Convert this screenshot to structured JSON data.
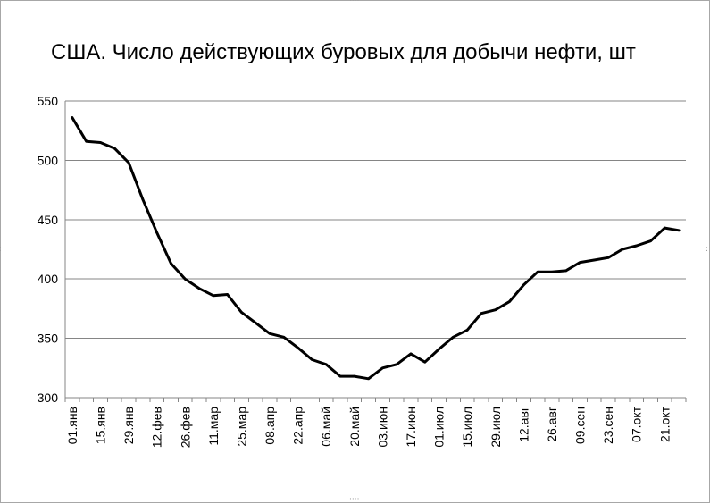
{
  "chart_data": {
    "type": "line",
    "title": "США. Число действующих буровых для добычи нефти, шт",
    "xlabel": "",
    "ylabel": "",
    "ylim": [
      300,
      550
    ],
    "yticks": [
      300,
      350,
      400,
      450,
      500,
      550
    ],
    "grid": "horizontal",
    "legend": "none",
    "line_color": "#000000",
    "x_tick_labels": [
      "01.янв",
      "15.янв",
      "29.янв",
      "12.фев",
      "26.фев",
      "11.мар",
      "25.мар",
      "08.апр",
      "22.апр",
      "06.май",
      "20.май",
      "03.июн",
      "17.июн",
      "01.июл",
      "15.июл",
      "29.июл",
      "12.авг",
      "26.авг",
      "09.сен",
      "23.сен",
      "07.окт",
      "21.окт"
    ],
    "x": [
      "01.янв",
      "08.янв",
      "15.янв",
      "22.янв",
      "29.янв",
      "05.фев",
      "12.фев",
      "19.фев",
      "26.фев",
      "04.мар",
      "11.мар",
      "18.мар",
      "25.мар",
      "01.апр",
      "08.апр",
      "15.апр",
      "22.апр",
      "29.апр",
      "06.май",
      "13.май",
      "20.май",
      "27.май",
      "03.июн",
      "10.июн",
      "17.июн",
      "24.июн",
      "01.июл",
      "08.июл",
      "15.июл",
      "22.июл",
      "29.июл",
      "05.авг",
      "12.авг",
      "19.авг",
      "26.авг",
      "02.сен",
      "09.сен",
      "16.сен",
      "23.сен",
      "30.сен",
      "07.окт",
      "14.окт",
      "21.окт",
      "28.окт"
    ],
    "series": [
      {
        "values": [
          536,
          516,
          515,
          510,
          498,
          467,
          439,
          413,
          400,
          392,
          386,
          387,
          372,
          363,
          354,
          351,
          342,
          332,
          328,
          318,
          318,
          316,
          325,
          328,
          337,
          330,
          341,
          351,
          357,
          371,
          374,
          381,
          395,
          406,
          406,
          407,
          414,
          416,
          418,
          425,
          428,
          432,
          443,
          441
        ]
      }
    ]
  }
}
